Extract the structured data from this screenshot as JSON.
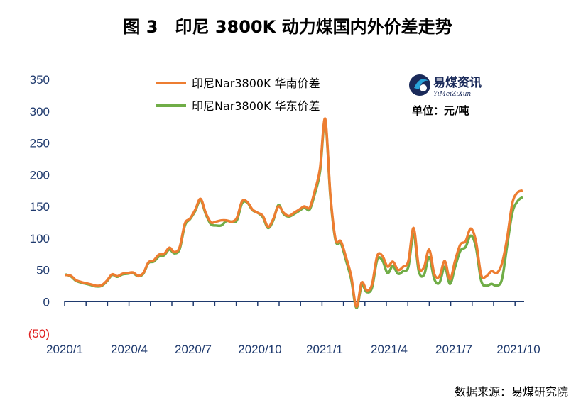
{
  "title": "图 3　印尼 3800K 动力煤国内外价差走势",
  "unit_label": "单位：元/吨",
  "source": "数据来源：易煤研究院",
  "logo": {
    "name": "易煤资讯",
    "sub": "YiMeiZiXun"
  },
  "colors": {
    "south": "#ed7d31",
    "east": "#70ad47",
    "axis": "#1f3a6e",
    "negative_tick": "#e02020"
  },
  "chart_data": {
    "type": "line",
    "title": "图 3　印尼 3800K 动力煤国内外价差走势",
    "ylabel": "单位：元/吨",
    "xlabel": "",
    "ylim": [
      -50,
      350
    ],
    "y_ticks": [
      "350",
      "300",
      "250",
      "200",
      "150",
      "100",
      "50",
      "0",
      "(50)"
    ],
    "x_ticks": [
      "2020/1",
      "2020/4",
      "2020/7",
      "2020/10",
      "2021/1",
      "2021/4",
      "2021/7",
      "2021/10"
    ],
    "x_index_range": [
      0,
      70
    ],
    "legend_position": "top",
    "series": [
      {
        "name": "印尼Nar3800K 华南价差",
        "color": "#ed7d31",
        "values": [
          42,
          41,
          34,
          31,
          29,
          27,
          25,
          26,
          33,
          43,
          40,
          44,
          45,
          46,
          41,
          45,
          62,
          65,
          74,
          75,
          85,
          78,
          86,
          123,
          131,
          145,
          162,
          140,
          125,
          126,
          128,
          128,
          126,
          132,
          158,
          157,
          145,
          140,
          135,
          118,
          130,
          150,
          140,
          135,
          140,
          145,
          150,
          148,
          175,
          210,
          288,
          168,
          98,
          95,
          70,
          40,
          -8,
          30,
          18,
          27,
          72,
          72,
          55,
          63,
          50,
          55,
          64,
          116,
          55,
          54,
          82,
          43,
          40,
          64,
          35,
          65,
          90,
          95,
          115,
          95,
          42,
          40,
          48,
          45,
          60,
          100,
          155,
          172,
          175
        ],
        "x_mode": "dense"
      },
      {
        "name": "印尼Nar3800K 华东价差",
        "color": "#70ad47",
        "values": [
          43,
          40,
          33,
          30,
          28,
          26,
          24,
          25,
          32,
          42,
          39,
          43,
          44,
          45,
          40,
          44,
          61,
          63,
          71,
          73,
          82,
          76,
          83,
          120,
          130,
          143,
          160,
          138,
          122,
          120,
          120,
          127,
          126,
          128,
          155,
          156,
          144,
          140,
          133,
          116,
          128,
          152,
          138,
          134,
          138,
          143,
          148,
          145,
          170,
          205,
          285,
          165,
          96,
          92,
          65,
          35,
          -10,
          25,
          15,
          22,
          66,
          65,
          45,
          56,
          44,
          48,
          55,
          106,
          48,
          42,
          70,
          35,
          30,
          55,
          28,
          55,
          80,
          86,
          104,
          86,
          33,
          25,
          28,
          25,
          35,
          88,
          140,
          158,
          165
        ],
        "x_mode": "dense"
      }
    ]
  }
}
